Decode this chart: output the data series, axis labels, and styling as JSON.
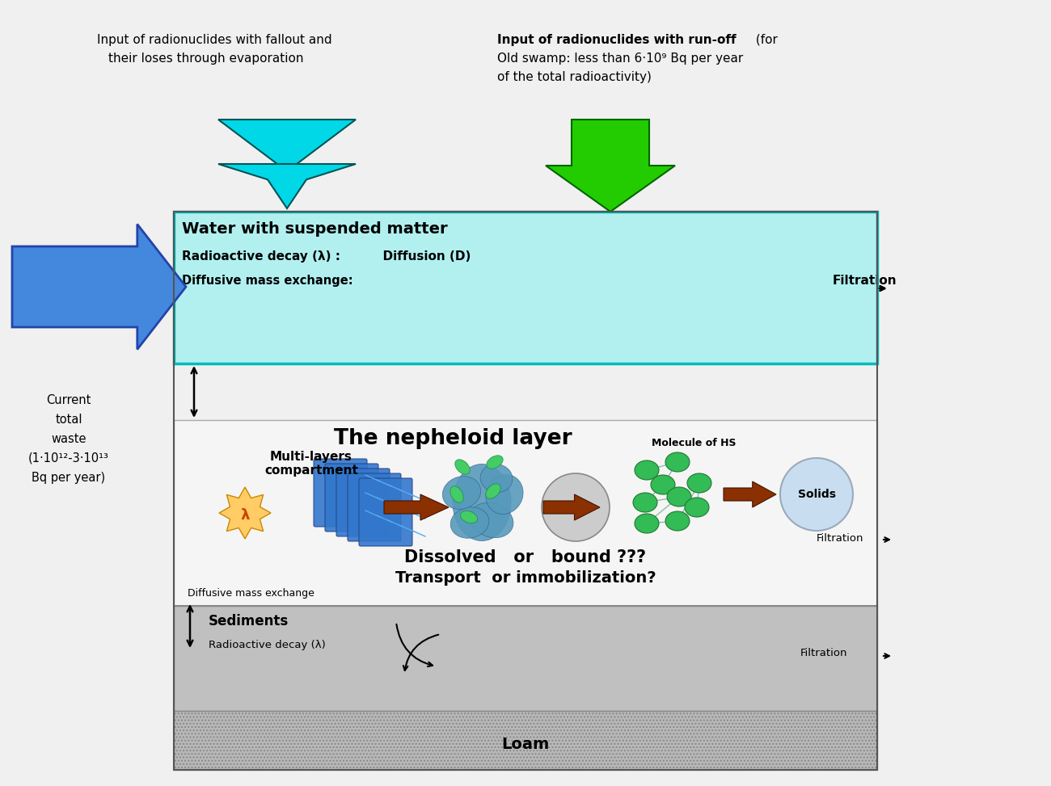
{
  "bg_color": "#f0f0f0",
  "top_left_line1": "Input of radionuclides with fallout and",
  "top_left_line2": "their loses through evaporation",
  "top_right_line1_bold": "Input of radionuclides with run-off",
  "top_right_line1_normal": " (for",
  "top_right_line2": "Old swamp: less than 6·10⁹ Bq per year",
  "top_right_line3": "of the total radioactivity)",
  "water_title": "Water with suspended matter",
  "water_decay": "Radioactive decay (λ) :          Diffusion (D)",
  "water_diffuse": "Diffusive mass exchange:",
  "water_filtration": "Filtration",
  "neph_title": "The nepheloid layer",
  "multilayers_text": "Multi-layers\ncompartment",
  "dissolved_text": "Dissolved   or   bound ???",
  "transport_text": "Transport  or immobilization?",
  "molecule_hs_text": "Molecule of HS",
  "solids_text": "Solids",
  "sediments_title": "Sediments",
  "sediments_decay": "Radioactive decay (λ)",
  "sediments_diffuse": "Diffusive mass exchange",
  "sediments_filtration": "Filtration",
  "loam_title": "Loam",
  "waste_line1": "Current",
  "waste_line2": "total",
  "waste_line3": "waste",
  "waste_line4": "(1·10¹²-3·10¹³",
  "waste_line5": "Bq per year)",
  "water_box_color": "#b2f0f0",
  "water_box_border": "#00bbbb",
  "neph_bg": "#f8f8f8",
  "sed_bg": "#c0c0c0",
  "loam_bg": "#b8b8b8",
  "cyan_color": "#00d8e8",
  "green_color": "#22cc00",
  "blue_arrow_color": "#4488dd",
  "brown_color": "#8b3000"
}
